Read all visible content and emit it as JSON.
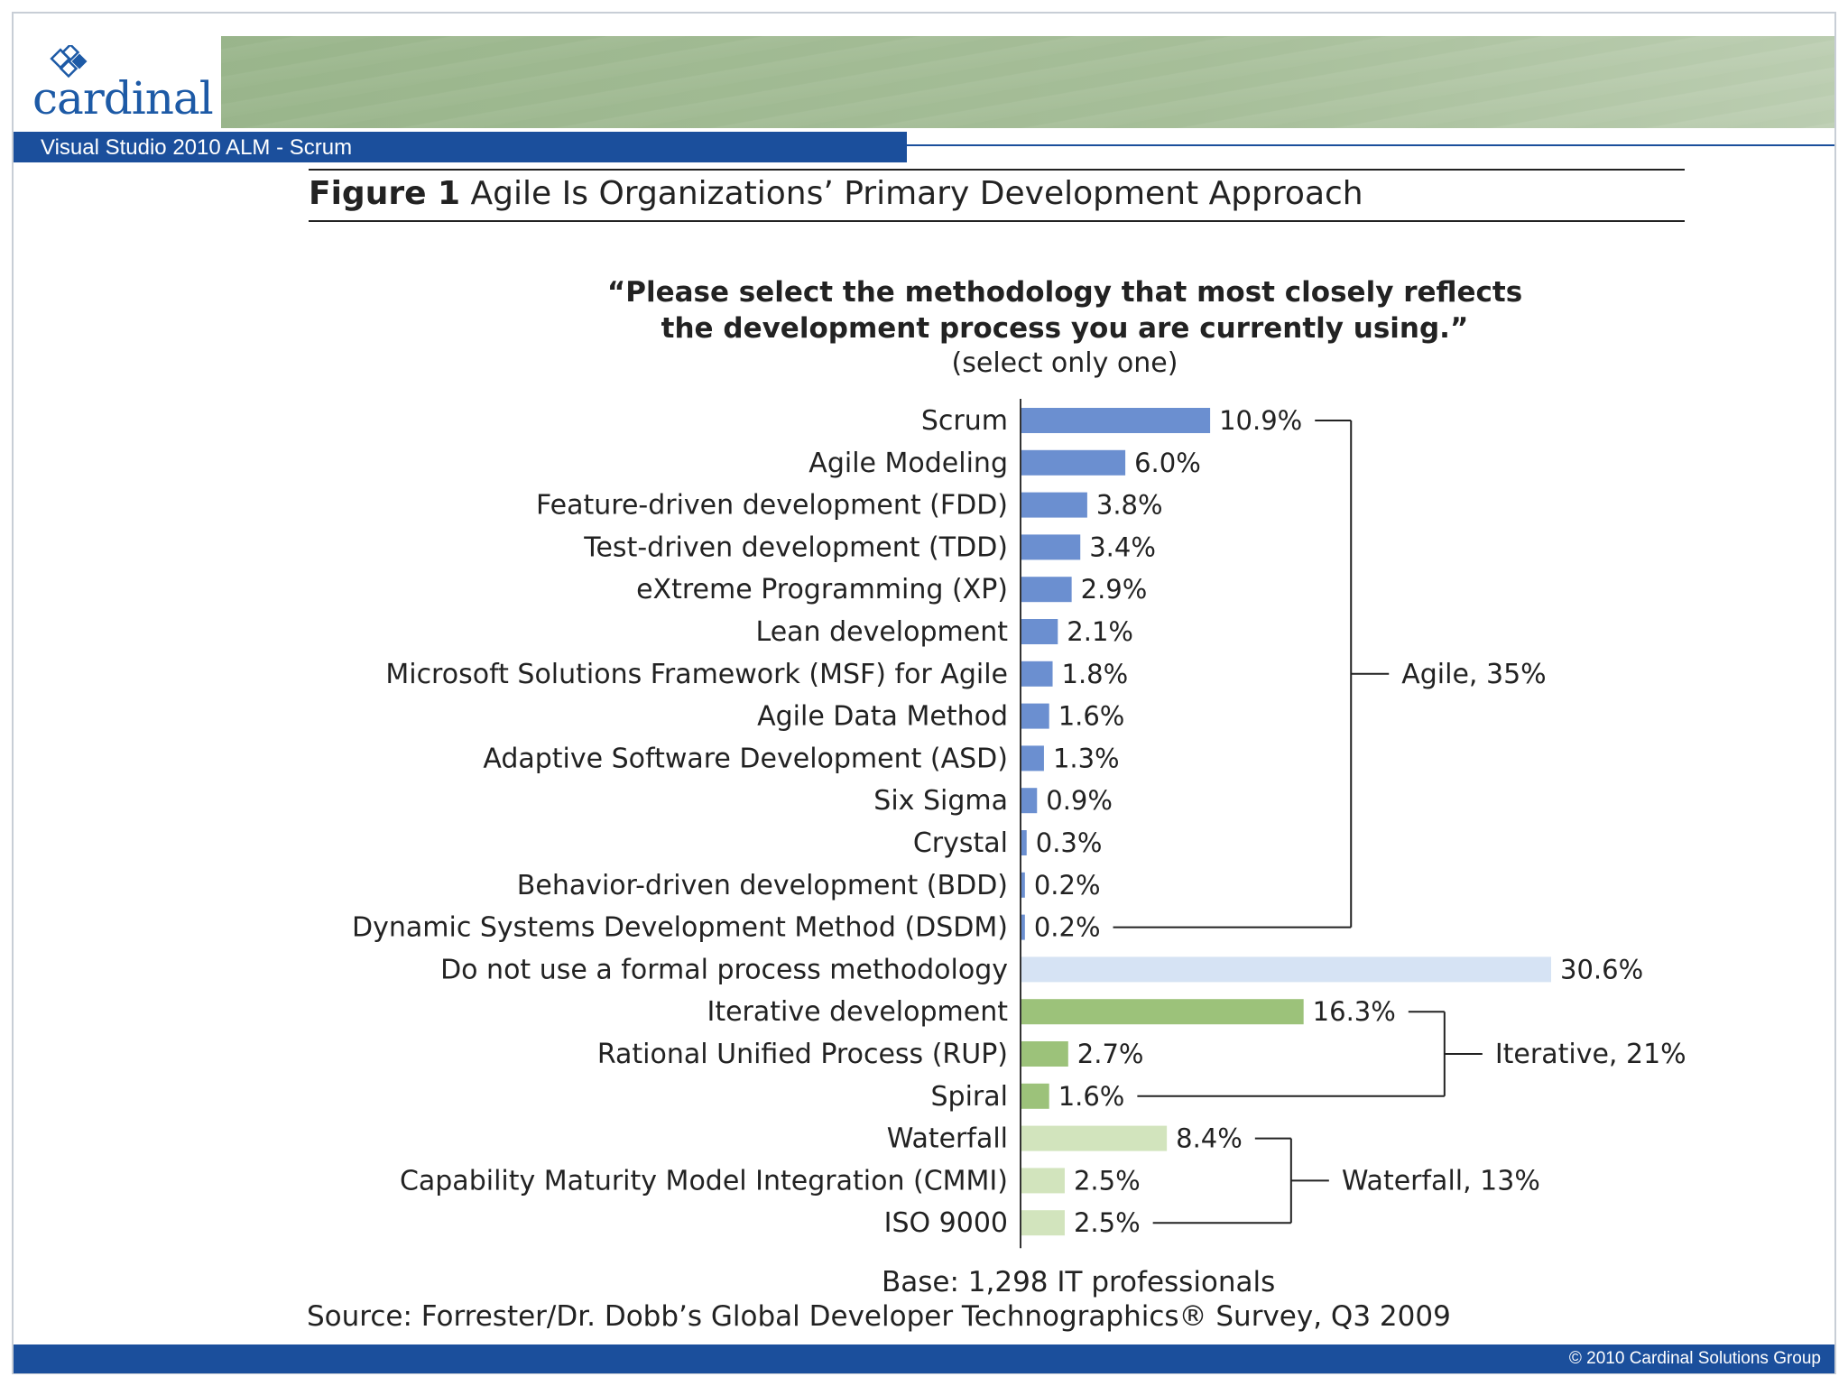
{
  "header": {
    "logo_text": "cardinal",
    "course_title": "Visual Studio 2010 ALM - Scrum"
  },
  "figure": {
    "label": "Figure 1",
    "title": "Agile Is Organizations’ Primary Development Approach"
  },
  "question": {
    "line1": "“Please select the methodology that most closely reflects",
    "line2": "the development process you are currently using.”",
    "line3": "(select only one)"
  },
  "notes": {
    "base": "Base: 1,298 IT professionals",
    "source": "Source: Forrester/Dr. Dobb’s Global Developer Technographics® Survey, Q3 2009"
  },
  "footer": {
    "copyright": "© 2010 Cardinal Solutions Group"
  },
  "colors": {
    "brand_blue": "#1b4f9c",
    "agile_bar": "#6b8fd0",
    "none_bar": "#d6e3f4",
    "iterative_bar": "#9cc27a",
    "waterfall_bar": "#d2e4bd"
  },
  "chart_data": {
    "type": "bar",
    "orientation": "horizontal",
    "xlim": [
      0,
      32
    ],
    "categories": [
      "Scrum",
      "Agile Modeling",
      "Feature-driven development (FDD)",
      "Test-driven development (TDD)",
      "eXtreme Programming (XP)",
      "Lean development",
      "Microsoft Solutions Framework (MSF) for Agile",
      "Agile Data Method",
      "Adaptive Software Development (ASD)",
      "Six Sigma",
      "Crystal",
      "Behavior-driven development (BDD)",
      "Dynamic Systems Development Method (DSDM)",
      "Do not use a formal process methodology",
      "Iterative development",
      "Rational Unified Process (RUP)",
      "Spiral",
      "Waterfall",
      "Capability Maturity Model Integration (CMMI)",
      "ISO 9000"
    ],
    "values": [
      10.9,
      6.0,
      3.8,
      3.4,
      2.9,
      2.1,
      1.8,
      1.6,
      1.3,
      0.9,
      0.3,
      0.2,
      0.2,
      30.6,
      16.3,
      2.7,
      1.6,
      8.4,
      2.5,
      2.5
    ],
    "value_labels": [
      "10.9%",
      "6.0%",
      "3.8%",
      "3.4%",
      "2.9%",
      "2.1%",
      "1.8%",
      "1.6%",
      "1.3%",
      "0.9%",
      "0.3%",
      "0.2%",
      "0.2%",
      "30.6%",
      "16.3%",
      "2.7%",
      "1.6%",
      "8.4%",
      "2.5%",
      "2.5%"
    ],
    "bar_groups": [
      "agile",
      "agile",
      "agile",
      "agile",
      "agile",
      "agile",
      "agile",
      "agile",
      "agile",
      "agile",
      "agile",
      "agile",
      "agile",
      "none",
      "iterative",
      "iterative",
      "iterative",
      "waterfall",
      "waterfall",
      "waterfall"
    ],
    "groups": [
      {
        "key": "agile",
        "label": "Agile, 35%",
        "first": 0,
        "last": 12
      },
      {
        "key": "iterative",
        "label": "Iterative, 21%",
        "first": 14,
        "last": 16
      },
      {
        "key": "waterfall",
        "label": "Waterfall, 13%",
        "first": 17,
        "last": 19
      }
    ]
  }
}
